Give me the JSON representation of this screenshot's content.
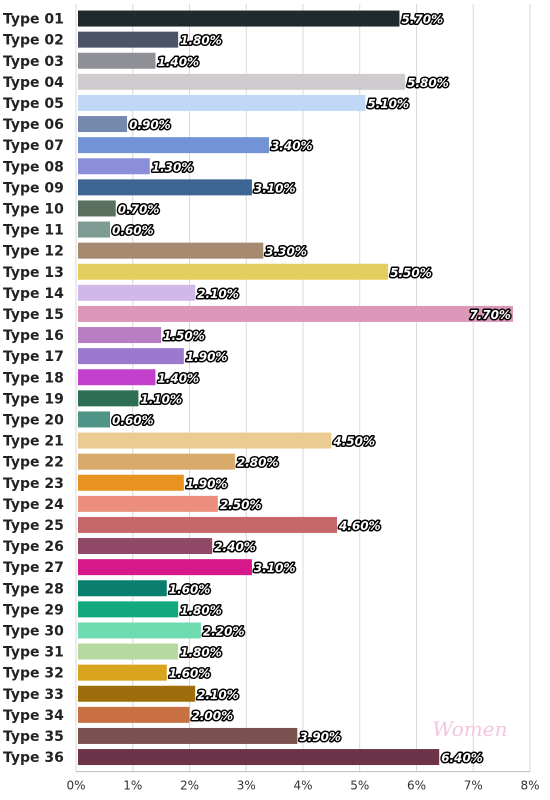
{
  "chart_data": {
    "type": "bar",
    "orientation": "horizontal",
    "categories": [
      "Type 01",
      "Type 02",
      "Type 03",
      "Type 04",
      "Type 05",
      "Type 06",
      "Type 07",
      "Type 08",
      "Type 09",
      "Type 10",
      "Type 11",
      "Type 12",
      "Type 13",
      "Type 14",
      "Type 15",
      "Type 16",
      "Type 17",
      "Type 18",
      "Type 19",
      "Type 20",
      "Type 21",
      "Type 22",
      "Type 23",
      "Type 24",
      "Type 25",
      "Type 26",
      "Type 27",
      "Type 28",
      "Type 29",
      "Type 30",
      "Type 31",
      "Type 32",
      "Type 33",
      "Type 34",
      "Type 35",
      "Type 36"
    ],
    "values": [
      5.7,
      1.8,
      1.4,
      5.8,
      5.1,
      0.9,
      3.4,
      1.3,
      3.1,
      0.7,
      0.6,
      3.3,
      5.5,
      2.1,
      7.7,
      1.5,
      1.9,
      1.4,
      1.1,
      0.6,
      4.5,
      2.8,
      1.9,
      2.5,
      4.6,
      2.4,
      3.1,
      1.6,
      1.8,
      2.2,
      1.8,
      1.6,
      2.1,
      2.0,
      3.9,
      6.4
    ],
    "value_labels": [
      "5.70%",
      "1.80%",
      "1.40%",
      "5.80%",
      "5.10%",
      "0.90%",
      "3.40%",
      "1.30%",
      "3.10%",
      "0.70%",
      "0.60%",
      "3.30%",
      "5.50%",
      "2.10%",
      "7.70%",
      "1.50%",
      "1.90%",
      "1.40%",
      "1.10%",
      "0.60%",
      "4.50%",
      "2.80%",
      "1.90%",
      "2.50%",
      "4.60%",
      "2.40%",
      "3.10%",
      "1.60%",
      "1.80%",
      "2.20%",
      "1.80%",
      "1.60%",
      "2.10%",
      "2.00%",
      "3.90%",
      "6.40%"
    ],
    "colors": [
      "#20292b",
      "#4c5568",
      "#8e9096",
      "#cfcbcf",
      "#c0d8f5",
      "#7489ab",
      "#7294d6",
      "#8b8ed8",
      "#3c6594",
      "#59705f",
      "#7d9a93",
      "#a58a70",
      "#e3cf5f",
      "#d0b9ea",
      "#dc97b9",
      "#b97dc4",
      "#9d78cf",
      "#c240cc",
      "#2d6e55",
      "#4f9486",
      "#ebcb92",
      "#d9ab6b",
      "#e8931f",
      "#ec8f7c",
      "#c66869",
      "#8f4866",
      "#d6188a",
      "#0a7e6f",
      "#13a97f",
      "#6edbb0",
      "#b6d9a2",
      "#d8a41d",
      "#9e6e0c",
      "#c97142",
      "#7b5150",
      "#6c3349"
    ],
    "xlim": [
      0,
      8
    ],
    "xticks": [
      "0%",
      "1%",
      "2%",
      "3%",
      "4%",
      "5%",
      "6%",
      "7%",
      "8%"
    ],
    "grid": true,
    "watermark": "Women"
  }
}
